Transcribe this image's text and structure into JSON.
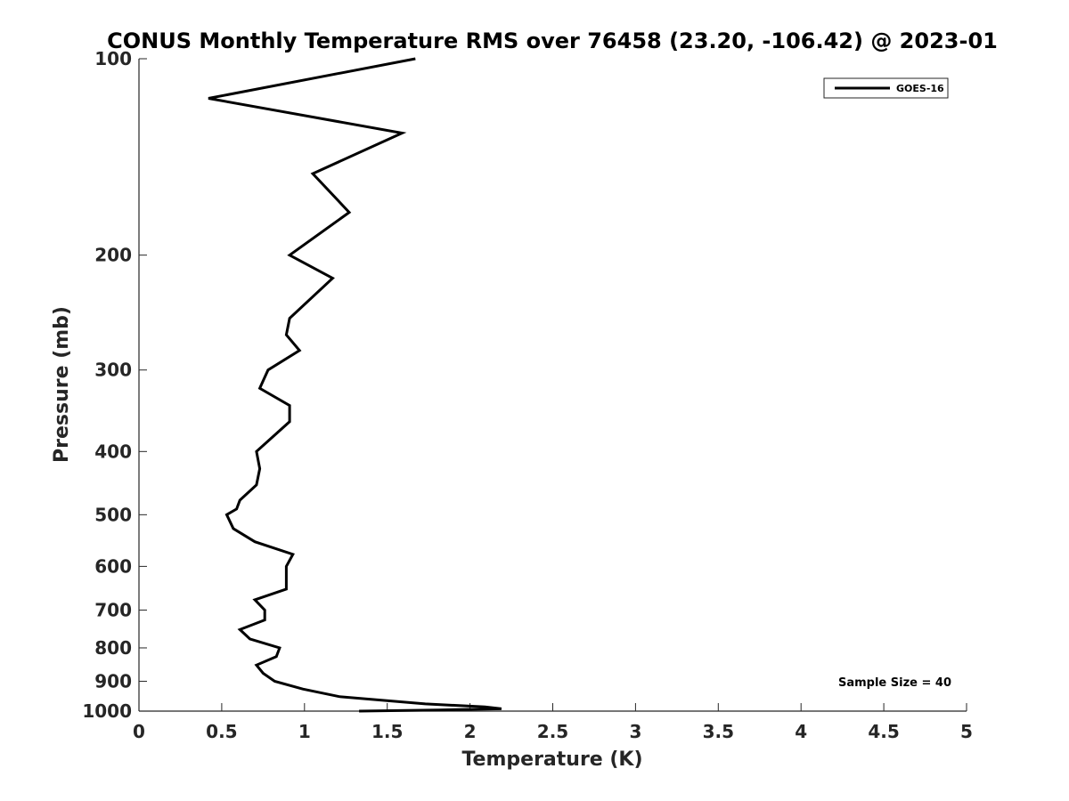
{
  "chart_data": {
    "type": "line",
    "title": "CONUS Monthly Temperature RMS over 76458 (23.20, -106.42) @ 2023-01",
    "xlabel": "Temperature (K)",
    "ylabel": "Pressure (mb)",
    "xlim": [
      0,
      5
    ],
    "ylim": [
      100,
      1000
    ],
    "y_scale": "log",
    "y_reversed": true,
    "x_ticks": [
      "0",
      "0.5",
      "1",
      "1.5",
      "2",
      "2.5",
      "3",
      "3.5",
      "4",
      "4.5",
      "5"
    ],
    "x_tick_values": [
      0,
      0.5,
      1,
      1.5,
      2,
      2.5,
      3,
      3.5,
      4,
      4.5,
      5
    ],
    "y_ticks": [
      "100",
      "200",
      "300",
      "400",
      "500",
      "600",
      "700",
      "800",
      "900",
      "1000"
    ],
    "y_tick_values": [
      100,
      200,
      300,
      400,
      500,
      600,
      700,
      800,
      900,
      1000
    ],
    "grid": false,
    "legend_position": "top-right",
    "series": [
      {
        "name": "GOES-16",
        "color": "#000000",
        "points": [
          [
            1.67,
            100
          ],
          [
            0.42,
            115
          ],
          [
            1.59,
            130
          ],
          [
            1.05,
            150
          ],
          [
            1.27,
            172
          ],
          [
            0.91,
            200
          ],
          [
            1.17,
            217
          ],
          [
            0.91,
            250
          ],
          [
            0.89,
            265
          ],
          [
            0.97,
            280
          ],
          [
            0.78,
            300
          ],
          [
            0.73,
            320
          ],
          [
            0.91,
            340
          ],
          [
            0.91,
            360
          ],
          [
            0.71,
            400
          ],
          [
            0.73,
            425
          ],
          [
            0.71,
            450
          ],
          [
            0.61,
            475
          ],
          [
            0.59,
            490
          ],
          [
            0.53,
            500
          ],
          [
            0.57,
            525
          ],
          [
            0.7,
            550
          ],
          [
            0.93,
            575
          ],
          [
            0.89,
            600
          ],
          [
            0.89,
            625
          ],
          [
            0.89,
            650
          ],
          [
            0.7,
            675
          ],
          [
            0.76,
            700
          ],
          [
            0.76,
            725
          ],
          [
            0.61,
            750
          ],
          [
            0.67,
            775
          ],
          [
            0.85,
            800
          ],
          [
            0.83,
            825
          ],
          [
            0.71,
            850
          ],
          [
            0.75,
            875
          ],
          [
            0.82,
            900
          ],
          [
            0.99,
            925
          ],
          [
            1.21,
            950
          ],
          [
            1.73,
            975
          ],
          [
            2.09,
            985
          ],
          [
            2.19,
            992
          ],
          [
            1.81,
            996
          ],
          [
            1.33,
            1000
          ]
        ]
      }
    ],
    "annotations": [
      "Sample Size = 40"
    ]
  }
}
